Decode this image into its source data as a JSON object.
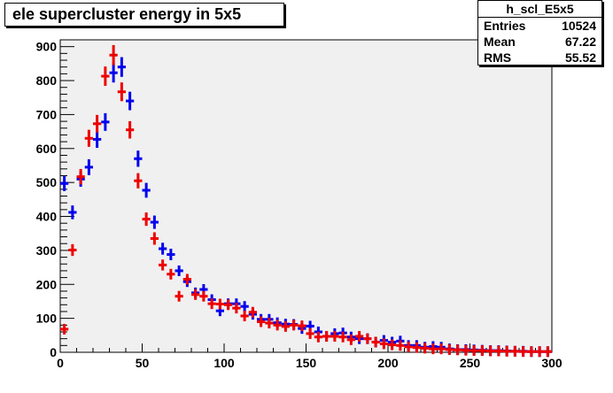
{
  "chart_data": {
    "type": "scatter",
    "title": "ele supercluster energy in 5x5",
    "xlim": [
      0,
      300
    ],
    "ylim": [
      0,
      920
    ],
    "x_ticks": [
      0,
      50,
      100,
      150,
      200,
      250,
      300
    ],
    "y_ticks": [
      0,
      100,
      200,
      300,
      400,
      500,
      600,
      700,
      800,
      900
    ],
    "bin_width": 5,
    "grid": false,
    "stats": {
      "name": "h_scl_E5x5",
      "rows": [
        {
          "label": "Entries",
          "value": "10524"
        },
        {
          "label": "Mean",
          "value": "67.22"
        },
        {
          "label": "RMS",
          "value": "55.52"
        }
      ]
    },
    "series": [
      {
        "color": "#0000ee",
        "x": [
          2.5,
          7.5,
          12.5,
          17.5,
          22.5,
          27.5,
          32.5,
          37.5,
          42.5,
          47.5,
          52.5,
          57.5,
          62.5,
          67.5,
          72.5,
          77.5,
          82.5,
          87.5,
          92.5,
          97.5,
          102.5,
          107.5,
          112.5,
          117.5,
          122.5,
          127.5,
          132.5,
          137.5,
          142.5,
          147.5,
          152.5,
          157.5,
          162.5,
          167.5,
          172.5,
          177.5,
          182.5,
          187.5,
          192.5,
          197.5,
          202.5,
          207.5,
          212.5,
          217.5,
          222.5,
          227.5,
          232.5,
          237.5,
          242.5,
          247.5,
          252.5,
          257.5,
          262.5,
          267.5,
          272.5,
          277.5,
          282.5,
          287.5,
          292.5,
          297.5
        ],
        "y": [
          497,
          412,
          510,
          545,
          627,
          678,
          823,
          840,
          740,
          570,
          477,
          383,
          305,
          288,
          240,
          208,
          175,
          185,
          155,
          122,
          143,
          143,
          135,
          112,
          97,
          97,
          87,
          83,
          82,
          70,
          77,
          60,
          47,
          55,
          57,
          45,
          40,
          40,
          30,
          35,
          30,
          33,
          20,
          20,
          15,
          17,
          15,
          10,
          8,
          8,
          7,
          6,
          5,
          5,
          4,
          3,
          3,
          2,
          2,
          2
        ]
      },
      {
        "color": "#ee0000",
        "x": [
          2.5,
          7.5,
          12.5,
          17.5,
          22.5,
          27.5,
          32.5,
          37.5,
          42.5,
          47.5,
          52.5,
          57.5,
          62.5,
          67.5,
          72.5,
          77.5,
          82.5,
          87.5,
          92.5,
          97.5,
          102.5,
          107.5,
          112.5,
          117.5,
          122.5,
          127.5,
          132.5,
          137.5,
          142.5,
          147.5,
          152.5,
          157.5,
          162.5,
          167.5,
          172.5,
          177.5,
          182.5,
          187.5,
          192.5,
          197.5,
          202.5,
          207.5,
          212.5,
          217.5,
          222.5,
          227.5,
          232.5,
          237.5,
          242.5,
          247.5,
          252.5,
          257.5,
          262.5,
          267.5,
          272.5,
          277.5,
          282.5,
          287.5,
          292.5,
          297.5
        ],
        "y": [
          68,
          301,
          517,
          630,
          673,
          813,
          875,
          767,
          655,
          505,
          392,
          335,
          257,
          230,
          165,
          215,
          170,
          165,
          143,
          142,
          140,
          130,
          107,
          118,
          90,
          86,
          80,
          76,
          80,
          78,
          55,
          45,
          47,
          47,
          45,
          37,
          47,
          40,
          30,
          25,
          22,
          20,
          16,
          14,
          12,
          10,
          10,
          8,
          7,
          6,
          5,
          5,
          4,
          4,
          3,
          3,
          2,
          2,
          2,
          2
        ]
      }
    ]
  }
}
